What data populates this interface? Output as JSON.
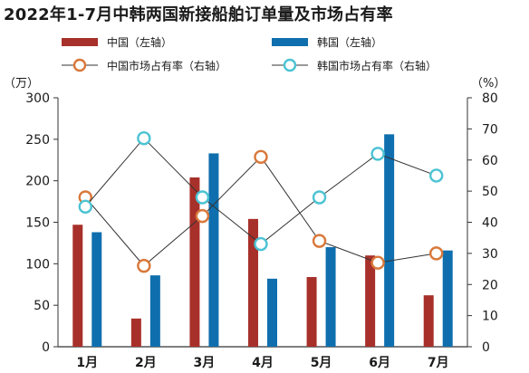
{
  "title": "2022年1-7月中韩两国新接船舶订单量及市场占有率",
  "chart_data": {
    "type": "bar",
    "categories": [
      "1月",
      "2月",
      "3月",
      "4月",
      "5月",
      "6月",
      "7月"
    ],
    "left_axis": {
      "unit": "（万）",
      "ylim": [
        0,
        300
      ],
      "ticks": [
        "0",
        "50",
        "100",
        "150",
        "200",
        "250",
        "300"
      ]
    },
    "right_axis": {
      "unit": "（%）",
      "ylim": [
        0,
        80
      ],
      "ticks": [
        "0",
        "10",
        "20",
        "30",
        "40",
        "50",
        "60",
        "70",
        "80"
      ]
    },
    "series": [
      {
        "name": "中国（左轴）",
        "kind": "bar",
        "axis": "left",
        "color": "#a8302a",
        "values": [
          147,
          34,
          204,
          154,
          84,
          110,
          62
        ]
      },
      {
        "name": "韩国（左轴）",
        "kind": "bar",
        "axis": "left",
        "color": "#0f6fae",
        "values": [
          138,
          86,
          233,
          82,
          120,
          256,
          116
        ]
      },
      {
        "name": "中国市场占有率（右轴）",
        "kind": "line",
        "axis": "right",
        "color": "#d9783a",
        "values": [
          48,
          26,
          42,
          61,
          34,
          27,
          30
        ]
      },
      {
        "name": "韩国市场占有率（右轴）",
        "kind": "line",
        "axis": "right",
        "color": "#4cc3d3",
        "values": [
          45,
          67,
          48,
          33,
          48,
          62,
          55
        ]
      }
    ],
    "grid": false,
    "legend_position": "top"
  }
}
